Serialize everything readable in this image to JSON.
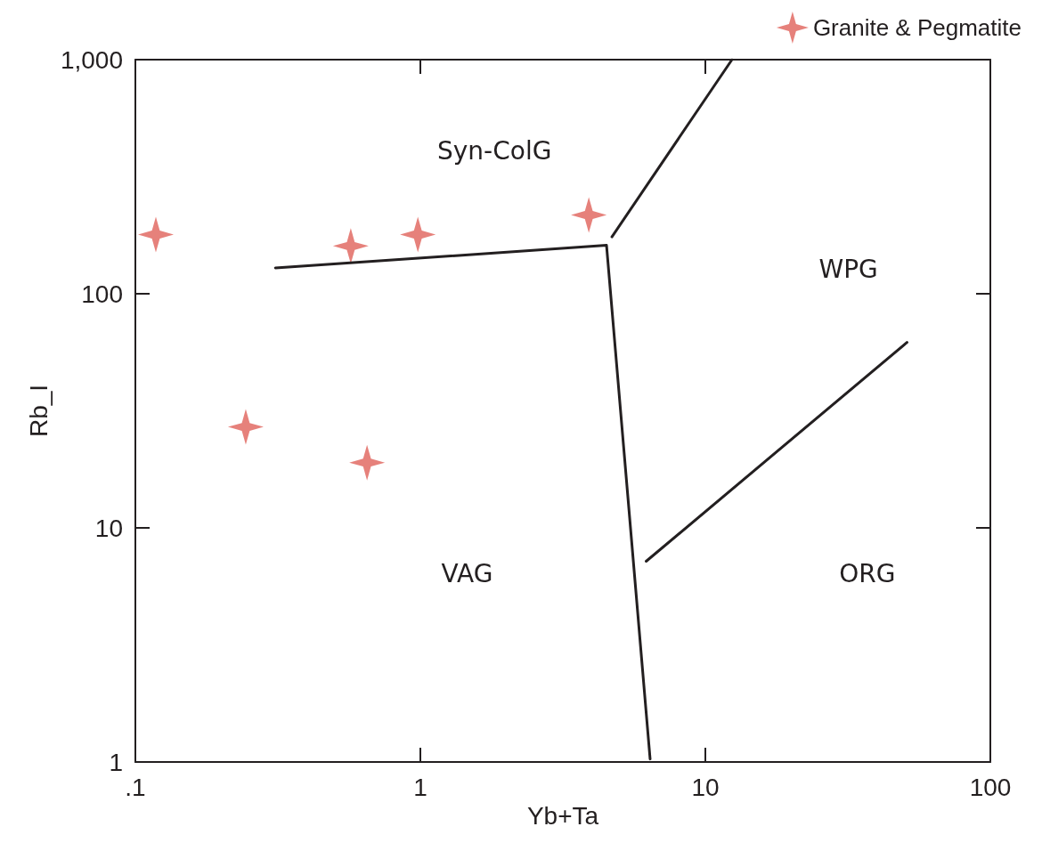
{
  "chart_data": {
    "type": "scatter",
    "xlabel": "Yb+Ta",
    "ylabel": "Rb_I",
    "log": "xy",
    "xlim": [
      0.1,
      100
    ],
    "ylim": [
      1,
      1000
    ],
    "xticks": [
      {
        "value": 0.1,
        "label": ".1"
      },
      1,
      10,
      100
    ],
    "yticks": [
      1,
      10,
      100,
      {
        "value": 1000,
        "label": "1,000"
      }
    ],
    "grid": false,
    "legend": "top right",
    "series": [
      {
        "name": "Granite & Pegmatite",
        "marker": "star",
        "color": "#e0625a",
        "x": [
          0.118,
          0.244,
          0.57,
          0.65,
          0.98,
          3.9
        ],
        "values": [
          179,
          27,
          160,
          19,
          179,
          217
        ]
      },
      {
        "type": "line",
        "marker": "none",
        "color": "#231f20",
        "x": [
          0.31,
          4.5,
          6.4
        ],
        "values": [
          129,
          161,
          1.03
        ]
      },
      {
        "type": "line",
        "marker": "none",
        "color": "#231f20",
        "x": [
          4.7,
          12.4
        ],
        "values": [
          175,
          1000
        ]
      },
      {
        "type": "line",
        "marker": "none",
        "color": "#231f20",
        "x": [
          6.2,
          51
        ],
        "values": [
          7.2,
          62
        ]
      }
    ],
    "annotations": [
      "Syn-ColG",
      "WPG",
      "VAG",
      "ORG"
    ]
  }
}
